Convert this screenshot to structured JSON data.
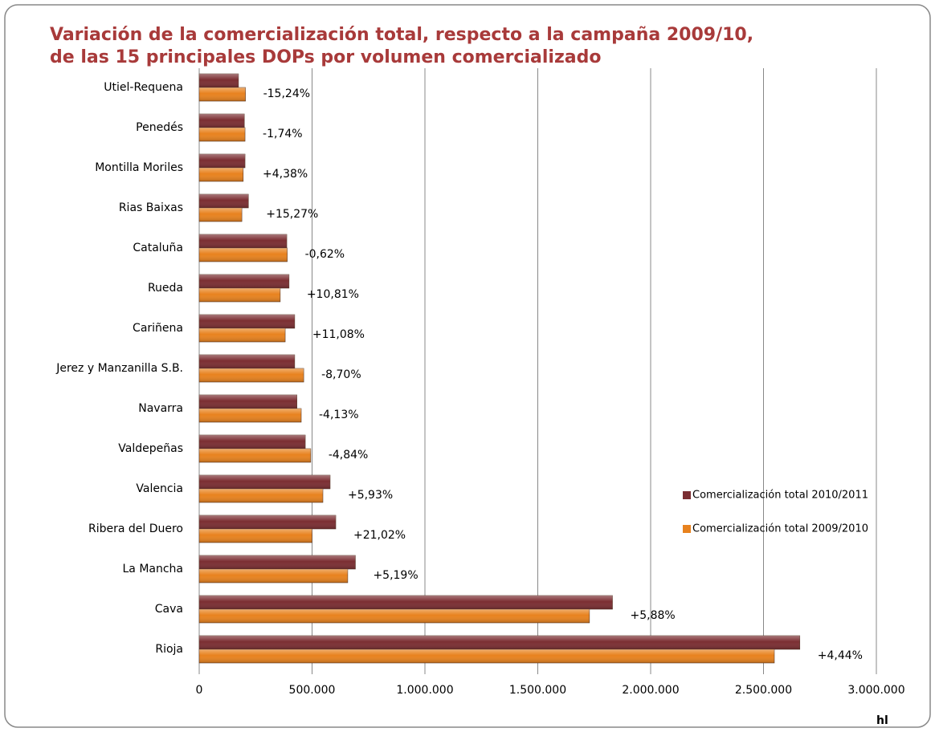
{
  "chart_data": {
    "type": "bar",
    "orientation": "horizontal",
    "title": "Variación de la comercialización total, respecto a la campaña 2009/10,",
    "subtitle": "de las 15 principales DOPs por volumen comercializado",
    "x_label": "hl",
    "categories": [
      "Utiel-Requena",
      "Penedés",
      "Montilla Moriles",
      "Rias Baixas",
      "Cataluña",
      "Rueda",
      "Cariñena",
      "Jerez y Manzanilla S.B.",
      "Navarra",
      "Valdepeñas",
      "Valencia",
      "Ribera del Duero",
      "La Mancha",
      "Cava",
      "Rioja"
    ],
    "series": [
      {
        "name": "Comercialización total 2010/2011",
        "color": "#7b2e32",
        "values": [
          174000,
          200000,
          203000,
          218000,
          388000,
          398000,
          423000,
          423000,
          433000,
          470000,
          580000,
          605000,
          692000,
          1831000,
          2661000
        ]
      },
      {
        "name": "Comercialización total 2009/2010",
        "color": "#e8821e",
        "values": [
          205000,
          203000,
          195000,
          189000,
          390000,
          359000,
          381000,
          463000,
          452000,
          494000,
          548000,
          500000,
          658000,
          1729000,
          2548000
        ]
      }
    ],
    "changes": [
      "-15,24%",
      "-1,74%",
      "+4,38%",
      "+15,27%",
      "-0,62%",
      "+10,81%",
      "+11,08%",
      "-8,70%",
      "-4,13%",
      "-4,84%",
      "+5,93%",
      "+21,02%",
      "+5,19%",
      "+5,88%",
      "+4,44%"
    ],
    "xlim": [
      0,
      3000000
    ],
    "xticks": [
      0,
      {
        "value": 500000,
        "label": "500.000"
      },
      {
        "value": 1000000,
        "label": "1.000.000"
      },
      {
        "value": 1500000,
        "label": "1.500.000"
      },
      {
        "value": 2000000,
        "label": "2.000.000"
      },
      {
        "value": 2500000,
        "label": "2.500.000"
      },
      {
        "value": 3000000,
        "label": "3.000.000"
      }
    ],
    "grid": true,
    "legend": "right"
  }
}
